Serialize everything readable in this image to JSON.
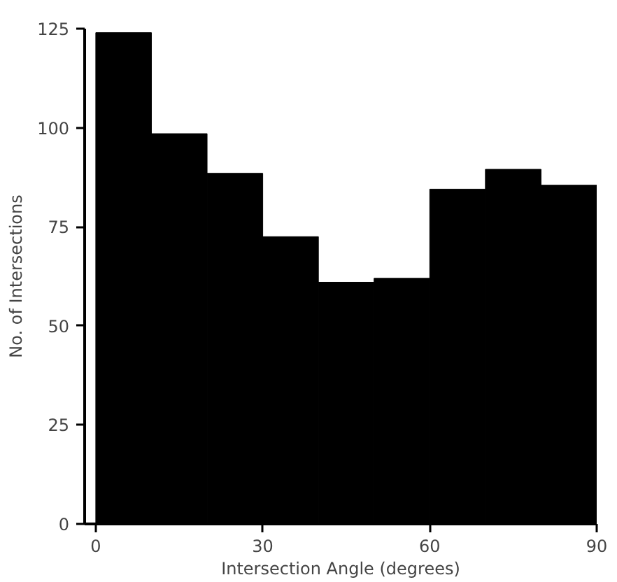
{
  "chart_data": {
    "type": "histogram",
    "xlabel": "Intersection Angle (degrees)",
    "ylabel": "No. of Intersections",
    "bins": [
      0,
      10,
      20,
      30,
      40,
      50,
      60,
      70,
      80,
      90
    ],
    "values": [
      124,
      98.5,
      88.5,
      72.5,
      61,
      62,
      84.5,
      89.5,
      85.5
    ],
    "color": "#000000",
    "xlim": [
      -2,
      90
    ],
    "ylim": [
      0,
      125
    ],
    "xticks": [
      0,
      30,
      60,
      90
    ],
    "yticks": [
      0,
      25,
      50,
      75,
      100,
      125
    ],
    "grid": false
  }
}
